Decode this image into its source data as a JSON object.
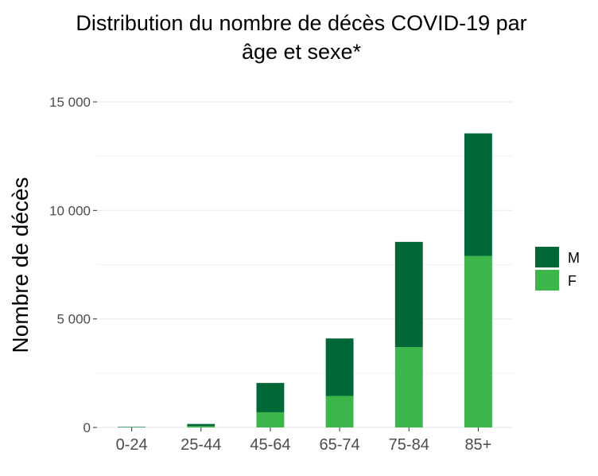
{
  "chart_data": {
    "type": "bar",
    "stacked": true,
    "title_lines": [
      "Distribution du nombre de décès COVID-19 par",
      "âge et sexe*"
    ],
    "xlabel": "",
    "ylabel": "Nombre de décès",
    "categories": [
      "0-24",
      "25-44",
      "45-64",
      "65-74",
      "75-84",
      "85+"
    ],
    "series": [
      {
        "name": "F",
        "values": [
          10,
          60,
          700,
          1450,
          3700,
          7900
        ],
        "color": "#3cb54a"
      },
      {
        "name": "M",
        "values": [
          20,
          100,
          1350,
          2650,
          4850,
          5650
        ],
        "color": "#006837"
      }
    ],
    "ylim": [
      0,
      15000
    ],
    "yticks": [
      0,
      5000,
      10000,
      15000
    ],
    "ytick_labels": [
      "0",
      "5 000",
      "10 000",
      "15 000"
    ],
    "legend_position": "right",
    "legend_order": [
      "M",
      "F"
    ],
    "grid": true
  }
}
